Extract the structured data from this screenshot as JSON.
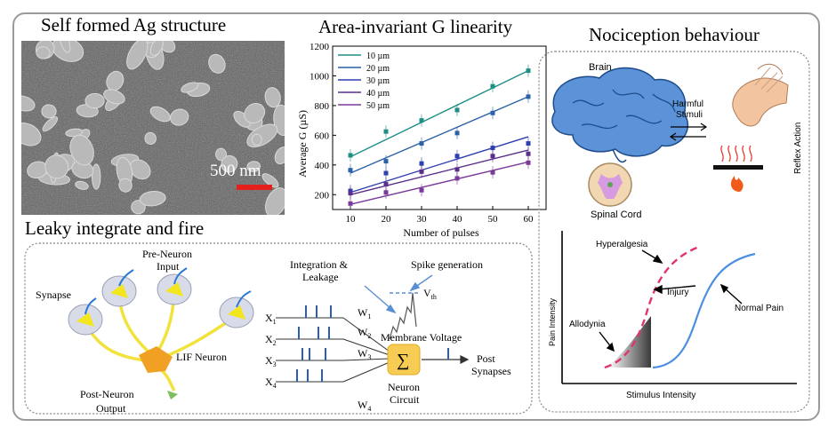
{
  "titles": {
    "ag": "Self formed Ag structure",
    "area": "Area-invariant G linearity",
    "noci": "Nociception behaviour",
    "lif": "Leaky integrate and fire"
  },
  "sem": {
    "scale": "500 nm"
  },
  "chart_data": {
    "type": "line",
    "x": [
      10,
      20,
      30,
      40,
      50,
      60
    ],
    "xlabel": "Number of pulses",
    "ylabel": "Average G (µS)",
    "xlim": [
      5,
      65
    ],
    "ylim": [
      100,
      1200
    ],
    "xticks": [
      "10",
      "20",
      "30",
      "40",
      "50",
      "60"
    ],
    "yticks": [
      "200",
      "400",
      "600",
      "800",
      "1000",
      "1200"
    ],
    "legend_position": "top-left",
    "series": [
      {
        "name": "10 µm",
        "color": "#1f8f86",
        "points": [
          465,
          625,
          700,
          770,
          930,
          1035
        ],
        "fit": [
          455,
          1035
        ]
      },
      {
        "name": "20 µm",
        "color": "#2a62a8",
        "points": [
          365,
          425,
          545,
          615,
          750,
          860
        ],
        "fit": [
          345,
          860
        ]
      },
      {
        "name": "30 µm",
        "color": "#2e3fb0",
        "points": [
          225,
          345,
          410,
          460,
          515,
          545
        ],
        "fit": [
          215,
          590
        ]
      },
      {
        "name": "40 µm",
        "color": "#5a2f8a",
        "points": [
          210,
          270,
          355,
          370,
          460,
          475
        ],
        "fit": [
          200,
          500
        ]
      },
      {
        "name": "50 µm",
        "color": "#7a3a9a",
        "points": [
          140,
          215,
          230,
          310,
          350,
          415
        ],
        "fit": [
          135,
          420
        ]
      }
    ]
  },
  "noci": {
    "brain": "Brain",
    "harmful": "Harmful",
    "stimuli": "Stimuli",
    "reflex": "Reflex Action",
    "spinal": "Spinal Cord",
    "hyperalgesia": "Hyperalgesia",
    "injury": "Injury",
    "normal_pain": "Normal Pain",
    "allodynia": "Allodynia",
    "yaxis": "Pain Intensity",
    "xaxis": "Stimulus Intensity"
  },
  "lif": {
    "pre1": "Pre-Neuron",
    "pre2": "Input",
    "synapse": "Synapse",
    "lif_neuron": "LIF Neuron",
    "post1": "Post-Neuron",
    "post2": "Output",
    "integration1": "Integration &",
    "integration2": "Leakage",
    "spike": "Spike generation",
    "vth": "V",
    "vth_sub": "th",
    "membrane": "Membrane Voltage",
    "sum": "∑",
    "circuit1": "Neuron",
    "circuit2": "Circuit",
    "post_syn1": "Post",
    "post_syn2": "Synapses",
    "x_inputs": [
      {
        "x": "X",
        "s": "1",
        "w": "W",
        "ws": "1"
      },
      {
        "x": "X",
        "s": "2",
        "w": "W",
        "ws": "2"
      },
      {
        "x": "X",
        "s": "3",
        "w": "W",
        "ws": "3"
      },
      {
        "x": "X",
        "s": "4",
        "w": "W",
        "ws": "4"
      }
    ]
  }
}
